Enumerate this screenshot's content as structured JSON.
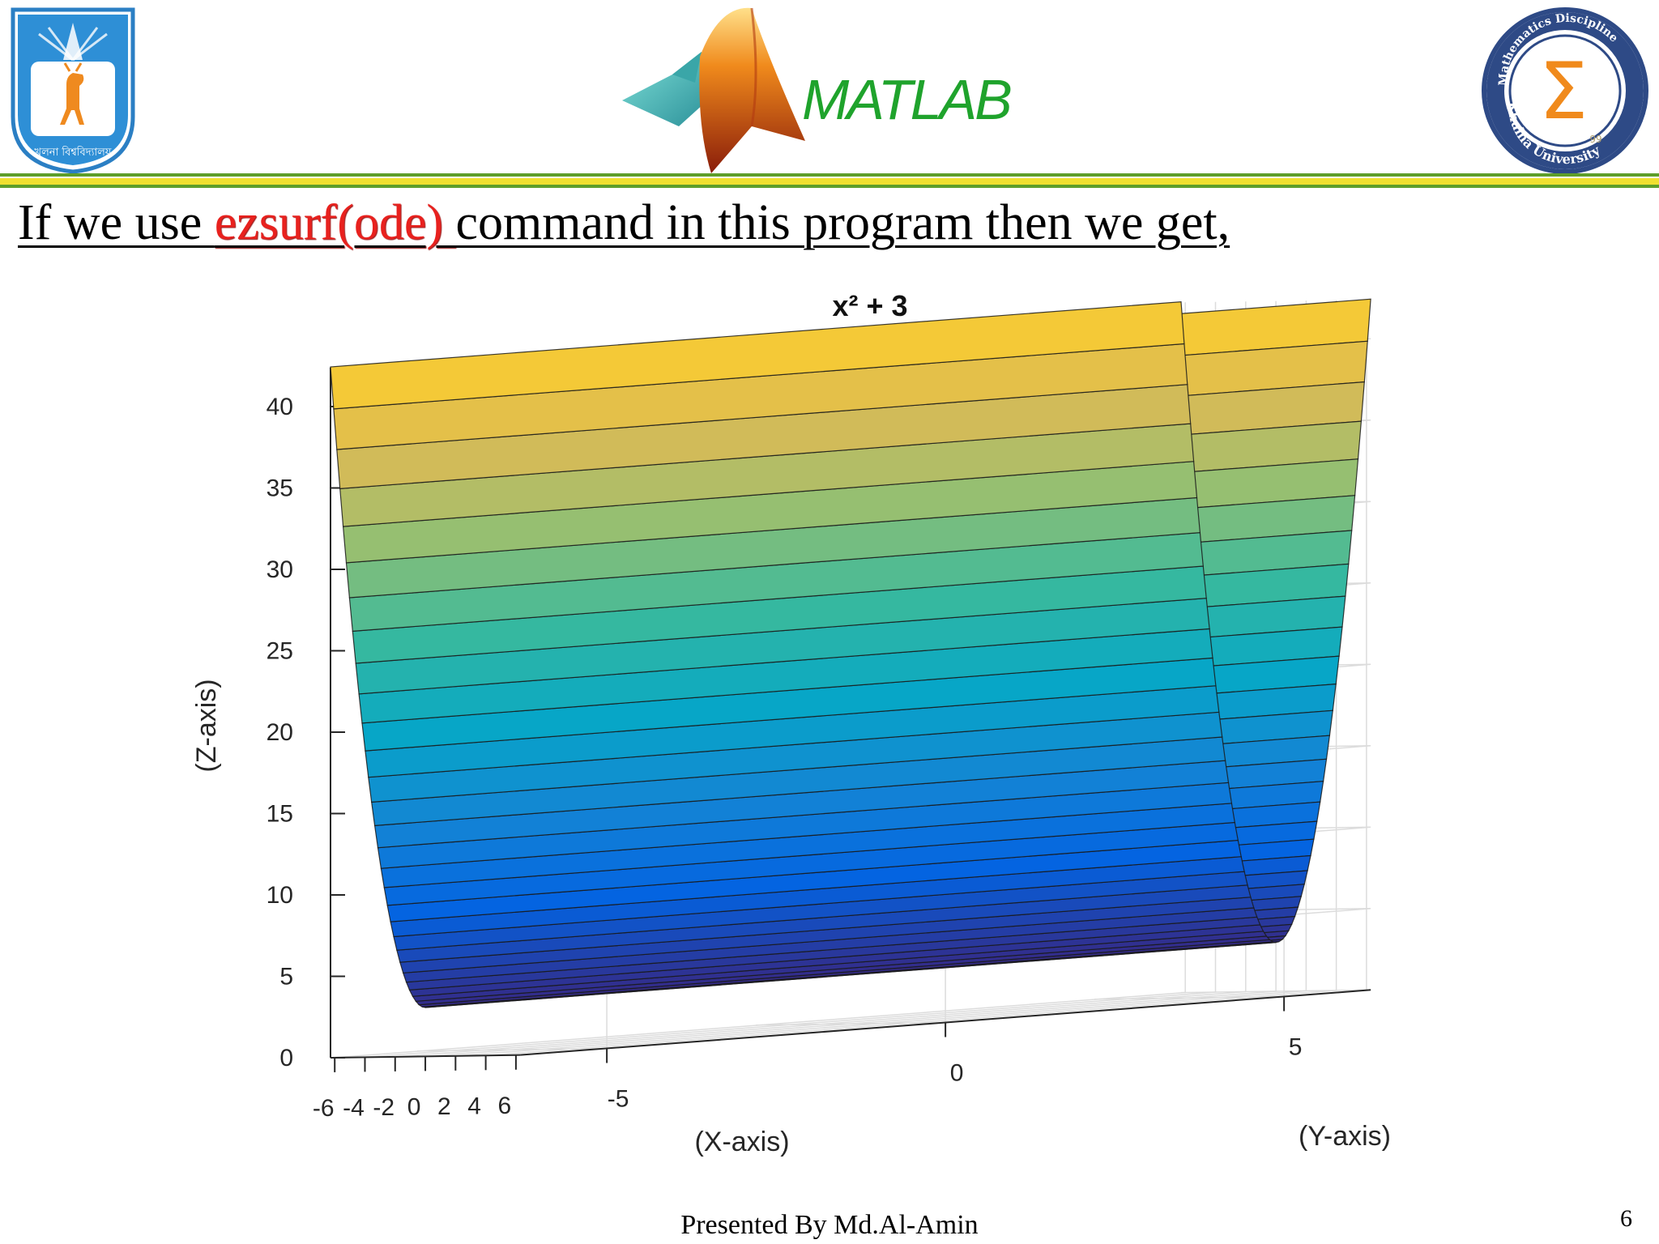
{
  "header": {
    "brand_title": "MATLAB",
    "colors": {
      "brand_green": "#1fa32c",
      "rule_green": "#5e9e2a",
      "rule_yellow": "#f0e030"
    },
    "university_logo_text": "খুলনা বিশ্ববিদ্যালয়",
    "math_logo_text_top": "Mathematics Discipline",
    "math_logo_text_bottom": "Khulna University",
    "math_logo_glyph": "Σ",
    "math_logo_year": "99"
  },
  "heading": {
    "prefix": "If we use ",
    "command": "ezsurf(ode) ",
    "suffix": "command in this program then we get,",
    "command_color": "#e8211e"
  },
  "chart_data": {
    "type": "surface",
    "title": "x² + 3",
    "function": "z = x^2 + 3",
    "xlabel": "(X-axis)",
    "ylabel": "(Y-axis)",
    "zlabel": "(Z-axis)",
    "x_range": [
      -6.28,
      6.28
    ],
    "y_range": [
      -6.28,
      6.28
    ],
    "z_range": [
      0,
      42.4
    ],
    "x_ticks": [
      -6,
      -4,
      -2,
      0,
      2,
      4,
      6
    ],
    "y_ticks": [
      -5,
      0,
      5
    ],
    "z_ticks": [
      0,
      5,
      10,
      15,
      20,
      25,
      30,
      35,
      40
    ],
    "grid": true,
    "colormap": "parula",
    "colormap_stops": [
      "#352a87",
      "#0363e1",
      "#1485d4",
      "#06a7c6",
      "#38b99e",
      "#92bf73",
      "#d9ba56",
      "#fcce2e"
    ]
  },
  "footer": {
    "presenter": "Presented By Md.Al-Amin",
    "page_number": "6"
  }
}
